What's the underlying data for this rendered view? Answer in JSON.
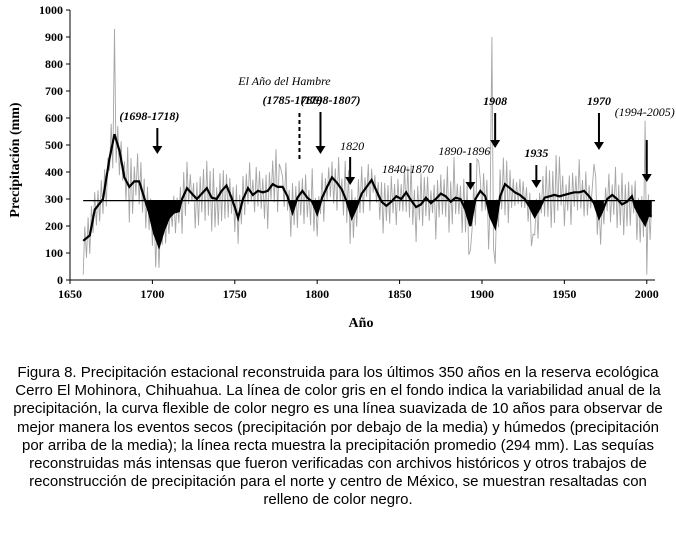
{
  "chart_data": {
    "type": "line",
    "ylabel": "Precipitación (mm)",
    "xlabel": "Año",
    "xlim": [
      1650,
      2005
    ],
    "ylim": [
      0,
      1000
    ],
    "x_ticks": [
      1650,
      1700,
      1750,
      1800,
      1850,
      1900,
      1950,
      2000
    ],
    "y_ticks": [
      0,
      100,
      200,
      300,
      400,
      500,
      600,
      700,
      800,
      900,
      1000
    ],
    "mean": 294,
    "series": [
      {
        "name": "suavizada 10 años",
        "color": "#000000",
        "points": [
          [
            1658,
            145
          ],
          [
            1662,
            165
          ],
          [
            1665,
            260
          ],
          [
            1670,
            300
          ],
          [
            1674,
            450
          ],
          [
            1677,
            540
          ],
          [
            1680,
            480
          ],
          [
            1683,
            380
          ],
          [
            1686,
            345
          ],
          [
            1689,
            365
          ],
          [
            1692,
            365
          ],
          [
            1695,
            305
          ],
          [
            1698,
            250
          ],
          [
            1701,
            175
          ],
          [
            1704,
            125
          ],
          [
            1707,
            185
          ],
          [
            1710,
            230
          ],
          [
            1713,
            250
          ],
          [
            1716,
            255
          ],
          [
            1718,
            300
          ],
          [
            1721,
            340
          ],
          [
            1724,
            320
          ],
          [
            1727,
            300
          ],
          [
            1730,
            320
          ],
          [
            1733,
            340
          ],
          [
            1736,
            305
          ],
          [
            1739,
            300
          ],
          [
            1742,
            330
          ],
          [
            1745,
            350
          ],
          [
            1748,
            305
          ],
          [
            1750,
            270
          ],
          [
            1752,
            230
          ],
          [
            1755,
            300
          ],
          [
            1758,
            340
          ],
          [
            1761,
            315
          ],
          [
            1764,
            330
          ],
          [
            1767,
            325
          ],
          [
            1770,
            330
          ],
          [
            1773,
            355
          ],
          [
            1776,
            345
          ],
          [
            1779,
            345
          ],
          [
            1782,
            310
          ],
          [
            1785,
            250
          ],
          [
            1788,
            305
          ],
          [
            1791,
            330
          ],
          [
            1794,
            305
          ],
          [
            1797,
            290
          ],
          [
            1800,
            245
          ],
          [
            1803,
            305
          ],
          [
            1806,
            345
          ],
          [
            1809,
            380
          ],
          [
            1812,
            360
          ],
          [
            1815,
            335
          ],
          [
            1818,
            290
          ],
          [
            1821,
            230
          ],
          [
            1824,
            270
          ],
          [
            1827,
            320
          ],
          [
            1830,
            345
          ],
          [
            1833,
            370
          ],
          [
            1836,
            330
          ],
          [
            1839,
            290
          ],
          [
            1842,
            275
          ],
          [
            1845,
            290
          ],
          [
            1848,
            310
          ],
          [
            1851,
            300
          ],
          [
            1854,
            325
          ],
          [
            1857,
            295
          ],
          [
            1860,
            270
          ],
          [
            1863,
            280
          ],
          [
            1866,
            305
          ],
          [
            1869,
            285
          ],
          [
            1872,
            300
          ],
          [
            1875,
            320
          ],
          [
            1878,
            310
          ],
          [
            1881,
            290
          ],
          [
            1884,
            305
          ],
          [
            1887,
            300
          ],
          [
            1890,
            260
          ],
          [
            1893,
            200
          ],
          [
            1896,
            300
          ],
          [
            1899,
            330
          ],
          [
            1902,
            310
          ],
          [
            1905,
            235
          ],
          [
            1908,
            195
          ],
          [
            1911,
            310
          ],
          [
            1914,
            355
          ],
          [
            1917,
            340
          ],
          [
            1920,
            325
          ],
          [
            1923,
            315
          ],
          [
            1926,
            300
          ],
          [
            1929,
            270
          ],
          [
            1932,
            235
          ],
          [
            1935,
            265
          ],
          [
            1938,
            305
          ],
          [
            1941,
            310
          ],
          [
            1944,
            315
          ],
          [
            1947,
            310
          ],
          [
            1950,
            315
          ],
          [
            1953,
            320
          ],
          [
            1956,
            325
          ],
          [
            1959,
            325
          ],
          [
            1962,
            330
          ],
          [
            1965,
            310
          ],
          [
            1968,
            285
          ],
          [
            1971,
            230
          ],
          [
            1973,
            255
          ],
          [
            1976,
            300
          ],
          [
            1979,
            315
          ],
          [
            1982,
            300
          ],
          [
            1985,
            280
          ],
          [
            1988,
            290
          ],
          [
            1991,
            310
          ],
          [
            1993,
            270
          ],
          [
            1996,
            235
          ],
          [
            1999,
            205
          ],
          [
            2001,
            240
          ],
          [
            2003,
            235
          ]
        ]
      }
    ],
    "annual_series": {
      "name": "variabilidad anual",
      "color": "#a6a6a6",
      "start_year": 1658,
      "end_year": 2003,
      "peaks": [
        [
          1677,
          930
        ],
        [
          1706,
          130
        ],
        [
          1778,
          410
        ],
        [
          1893,
          110
        ],
        [
          1898,
          440
        ],
        [
          1906,
          900
        ],
        [
          1907,
          120
        ],
        [
          1931,
          170
        ],
        [
          1968,
          430
        ],
        [
          1999,
          590
        ],
        [
          2000,
          20
        ]
      ]
    },
    "annotations": [
      {
        "text": "El Año del Hambre",
        "year": 1785,
        "style": "title"
      },
      {
        "text": "(1785-1786)",
        "year": 1785,
        "arrow": "dashed"
      },
      {
        "text": "(1698-1718)",
        "year": 1703,
        "arrow": "solid"
      },
      {
        "text": "(1798-1807)",
        "year": 1802,
        "arrow": "solid"
      },
      {
        "text": "1820",
        "year": 1820,
        "arrow": "solid"
      },
      {
        "text": "1840-1870",
        "year": 1855,
        "arrow": "none"
      },
      {
        "text": "1890-1896",
        "year": 1893,
        "arrow": "solid"
      },
      {
        "text": "1908",
        "year": 1908,
        "arrow": "solid"
      },
      {
        "text": "1935",
        "year": 1933,
        "arrow": "solid"
      },
      {
        "text": "1970",
        "year": 1971,
        "arrow": "solid"
      },
      {
        "text": "(1994-2005)",
        "year": 2000,
        "arrow": "solid"
      }
    ]
  },
  "caption": "Figura 8. Precipitación estacional reconstruida para los últimos 350 años en la reserva ecológica Cerro El Mohinora, Chihuahua. La línea de color gris en el fondo indica la variabilidad anual de la precipitación, la curva flexible de color negro es una línea suavizada de 10 años para observar de mejor manera los eventos secos (precipitación por debajo de la media) y húmedos (precipitación por arriba de la media); la línea recta muestra la precipitación promedio (294 mm). Las sequías reconstruidas más intensas que fueron verificadas con archivos históricos y otros trabajos de reconstrucción de precipitación para el norte y centro de México, se muestran resaltadas con relleno de color negro."
}
